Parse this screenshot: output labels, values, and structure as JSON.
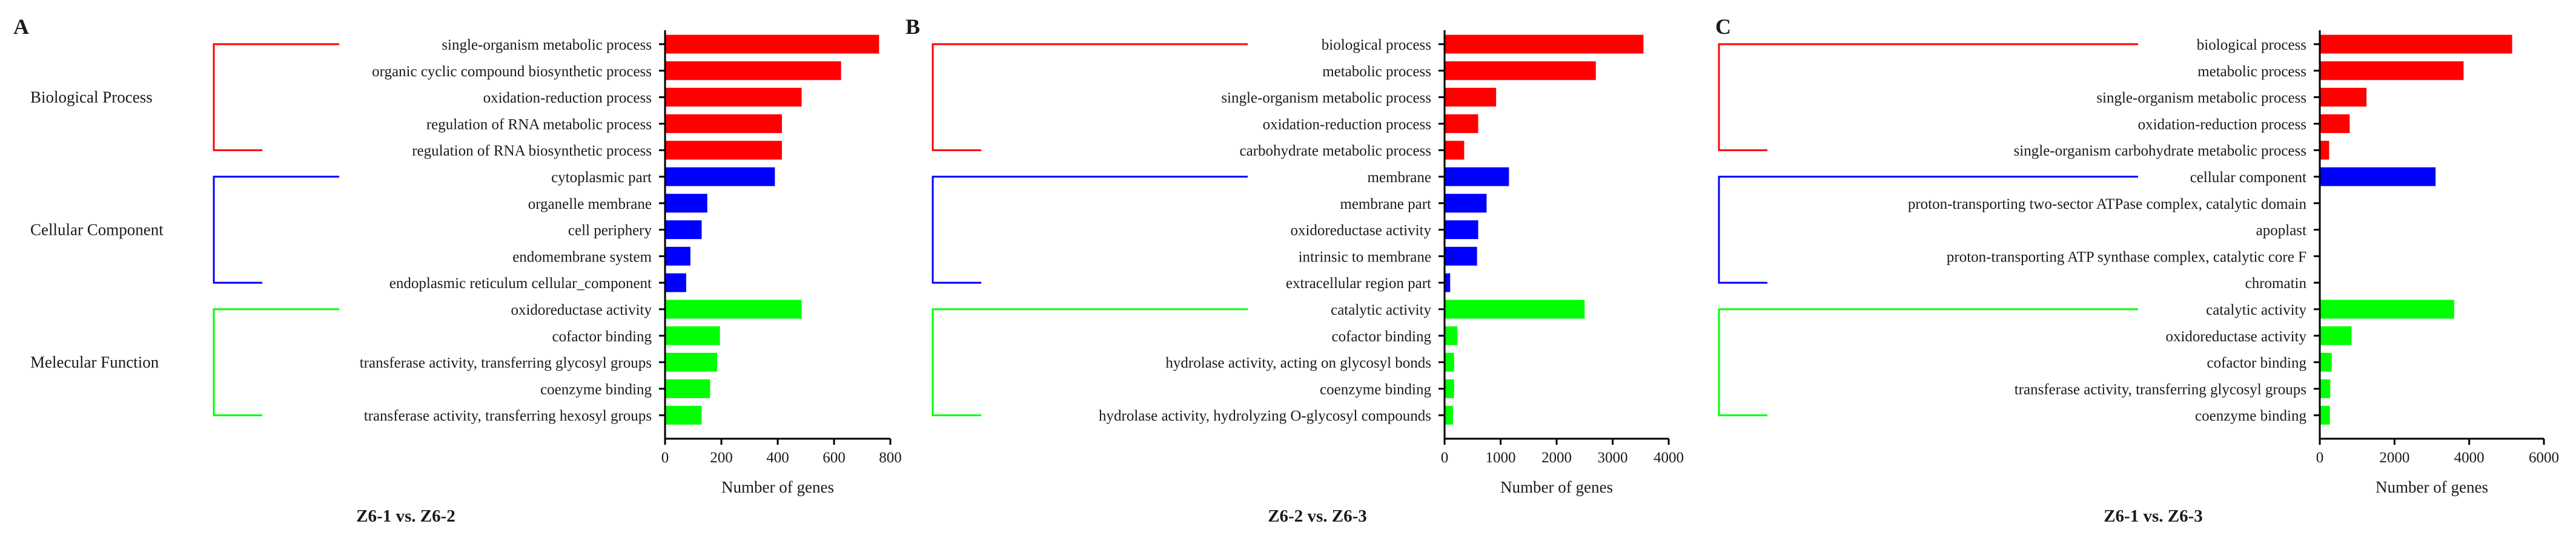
{
  "chart_data": [
    {
      "type": "bar",
      "orientation": "horizontal",
      "panel": "A",
      "title": "Z6-1 vs. Z6-2",
      "xlabel": "Number of genes",
      "xlim": [
        0,
        800
      ],
      "xticks": [
        0,
        200,
        400,
        600,
        800
      ],
      "groups": [
        {
          "name": "Biological Process",
          "color": "#ff0000",
          "categories": [
            "single-organism metabolic process",
            "organic cyclic compound biosynthetic process",
            "oxidation-reduction process",
            "regulation of RNA metabolic process",
            "regulation of RNA biosynthetic process"
          ],
          "values": [
            760,
            625,
            485,
            415,
            415
          ]
        },
        {
          "name": "Cellular Component",
          "color": "#0000ff",
          "categories": [
            "cytoplasmic part",
            "organelle membrane",
            "cell periphery",
            "endomembrane system",
            "endoplasmic reticulum cellular_component"
          ],
          "values": [
            390,
            150,
            130,
            90,
            75
          ]
        },
        {
          "name": "Melecular Function",
          "color": "#00ff00",
          "categories": [
            "oxidoreductase activity",
            "cofactor binding",
            "transferase activity, transferring glycosyl groups",
            "coenzyme binding",
            "transferase activity, transferring hexosyl groups"
          ],
          "values": [
            485,
            195,
            185,
            160,
            130
          ]
        }
      ]
    },
    {
      "type": "bar",
      "orientation": "horizontal",
      "panel": "B",
      "title": "Z6-2 vs. Z6-3",
      "xlabel": "Number of genes",
      "xlim": [
        0,
        4000
      ],
      "xticks": [
        0,
        1000,
        2000,
        3000,
        4000
      ],
      "groups": [
        {
          "name": "",
          "color": "#ff0000",
          "categories": [
            "biological  process",
            "metabolic process",
            "single-organism metabolic process",
            "oxidation-reduction process",
            "carbohydrate metabolic process"
          ],
          "values": [
            3550,
            2700,
            920,
            600,
            350
          ]
        },
        {
          "name": "",
          "color": "#0000ff",
          "categories": [
            "membrane",
            "membrane part",
            "oxidoreductase activity",
            "intrinsic to membrane",
            "extracellular region part"
          ],
          "values": [
            1150,
            750,
            600,
            580,
            100
          ]
        },
        {
          "name": "",
          "color": "#00ff00",
          "categories": [
            "catalytic activity",
            "cofactor binding",
            "hydrolase activity, acting on glycosyl bonds",
            "coenzyme binding",
            "hydrolase activity, hydrolyzing O-glycosyl compounds"
          ],
          "values": [
            2500,
            230,
            170,
            170,
            150
          ]
        }
      ]
    },
    {
      "type": "bar",
      "orientation": "horizontal",
      "panel": "C",
      "title": "Z6-1 vs. Z6-3",
      "xlabel": "Number of genes",
      "xlim": [
        0,
        6000
      ],
      "xticks": [
        0,
        2000,
        4000,
        6000
      ],
      "groups": [
        {
          "name": "",
          "color": "#ff0000",
          "categories": [
            "biological  process",
            "metabolic process",
            "single-organism metabolic process",
            "oxidation-reduction process",
            "single-organism carbohydrate metabolic process"
          ],
          "values": [
            5150,
            3850,
            1250,
            800,
            250
          ]
        },
        {
          "name": "",
          "color": "#0000ff",
          "categories": [
            "cellular  component",
            "proton-transporting two-sector ATPase complex, catalytic domain",
            "apoplast",
            "proton-transporting ATP synthase complex, catalytic core F",
            "chromatin"
          ],
          "values": [
            3100,
            20,
            15,
            15,
            10
          ]
        },
        {
          "name": "",
          "color": "#00ff00",
          "categories": [
            "catalytic activity",
            "oxidoreductase activity",
            "cofactor binding",
            "transferase activity, transferring glycosyl groups",
            "coenzyme binding"
          ],
          "values": [
            3600,
            850,
            320,
            280,
            270
          ]
        }
      ]
    }
  ]
}
